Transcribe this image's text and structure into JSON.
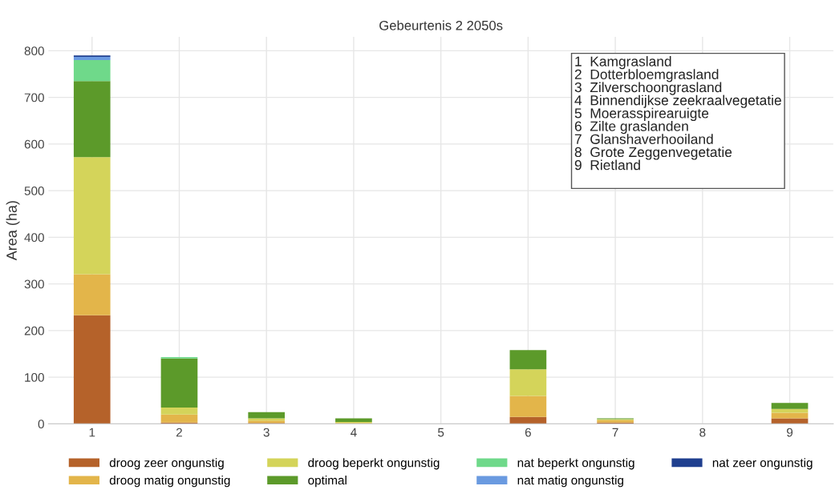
{
  "chart_data": {
    "type": "bar",
    "title": "Gebeurtenis 2 2050s",
    "ylabel": "Area (ha)",
    "categories": [
      "1",
      "2",
      "3",
      "4",
      "5",
      "6",
      "7",
      "8",
      "9"
    ],
    "stacked": true,
    "series": [
      {
        "name": "droog zeer ongunstig",
        "color": "#b5622a",
        "values": [
          233,
          3,
          2,
          0,
          0,
          15,
          3,
          0,
          12
        ]
      },
      {
        "name": "droog matig ongunstig",
        "color": "#e3b54a",
        "values": [
          88,
          17,
          5,
          2,
          0,
          45,
          5,
          0,
          12
        ]
      },
      {
        "name": "droog beperkt ongunstig",
        "color": "#d4d45a",
        "values": [
          251,
          15,
          5,
          2,
          0,
          57,
          2,
          0,
          8
        ]
      },
      {
        "name": "optimal",
        "color": "#5c9a2a",
        "values": [
          163,
          105,
          13,
          8,
          0,
          41,
          2,
          null,
          13
        ]
      },
      {
        "name": "nat beperkt ongunstig",
        "color": "#6fd98a",
        "values": [
          45,
          3,
          0,
          0,
          0,
          0,
          0,
          0,
          0
        ]
      },
      {
        "name": "nat matig ongunstig",
        "color": "#6a9ae0",
        "values": [
          7,
          0,
          0,
          0,
          0,
          0,
          0,
          0,
          0
        ]
      },
      {
        "name": "nat zeer ongunstig",
        "color": "#1f3f8f",
        "values": [
          3,
          0,
          0,
          0,
          0,
          0,
          0,
          0,
          0
        ]
      }
    ],
    "ylim": [
      0,
      830
    ],
    "yticks": [
      0,
      100,
      200,
      300,
      400,
      500,
      600,
      700,
      800
    ],
    "grid": true,
    "legend": "bottom",
    "annotations": [
      "1  Kamgrasland\n2  Dotterbloemgrasland\n3  Zilverschoongrasland\n4  Binnendijkse zeekraalvegetatie\n5  Moerasspirearuigte\n6  Zilte graslanden\n7  Glanshaverhooiland\n8  Grote Zeggenvegetatie\n9  Rietland\n"
    ]
  }
}
